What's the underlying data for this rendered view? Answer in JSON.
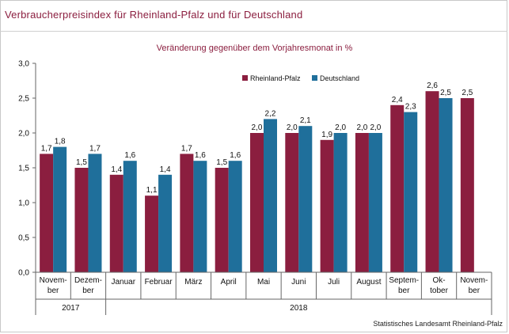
{
  "title": "Verbraucherpreisindex für Rheinland-Pfalz und für Deutschland",
  "source": "Statistisches Landesamt Rheinland-Pfalz",
  "colors": {
    "title": "#8b1e3f",
    "series_rlp": "#8b1e3f",
    "series_de": "#1f6f9b"
  },
  "chart_data": {
    "type": "bar",
    "subtitle": "Veränderung gegenüber dem Vorjahresmonat in %",
    "categories": [
      [
        "Novem-",
        "ber"
      ],
      [
        "Dezem-",
        "ber"
      ],
      [
        "Januar"
      ],
      [
        "Februar"
      ],
      [
        "März"
      ],
      [
        "April"
      ],
      [
        "Mai"
      ],
      [
        "Juni"
      ],
      [
        "Juli"
      ],
      [
        "August"
      ],
      [
        "Septem-",
        "ber"
      ],
      [
        "Ok-",
        "tober"
      ],
      [
        "Novem-",
        "ber"
      ]
    ],
    "year_groups": [
      {
        "label": "2017",
        "from": 0,
        "to": 1
      },
      {
        "label": "2018",
        "from": 2,
        "to": 12
      }
    ],
    "series": [
      {
        "name": "Rheinland-Pfalz",
        "color": "#8b1e3f",
        "values": [
          1.7,
          1.5,
          1.4,
          1.1,
          1.7,
          1.5,
          2.0,
          2.0,
          1.9,
          2.0,
          2.4,
          2.6,
          2.5
        ],
        "labels": [
          "1,7",
          "1,5",
          "1,4",
          "1,1",
          "1,7",
          "1,5",
          "2,0",
          "2,0",
          "1,9",
          "2,0",
          "2,4",
          "2,6",
          "2,5"
        ]
      },
      {
        "name": "Deutschland",
        "color": "#1f6f9b",
        "values": [
          1.8,
          1.7,
          1.6,
          1.4,
          1.6,
          1.6,
          2.2,
          2.1,
          2.0,
          2.0,
          2.3,
          2.5,
          null
        ],
        "labels": [
          "1,8",
          "1,7",
          "1,6",
          "1,4",
          "1,6",
          "1,6",
          "2,2",
          "2,1",
          "2,0",
          "2,0",
          "2,3",
          "2,5",
          null
        ]
      }
    ],
    "ylim": [
      0,
      3.0
    ],
    "yticks": [
      0,
      0.5,
      1.0,
      1.5,
      2.0,
      2.5,
      3.0
    ],
    "ytick_labels": [
      "0,0",
      "0,5",
      "1,0",
      "1,5",
      "2,0",
      "2,5",
      "3,0"
    ],
    "grid": false,
    "legend": "top-center"
  }
}
